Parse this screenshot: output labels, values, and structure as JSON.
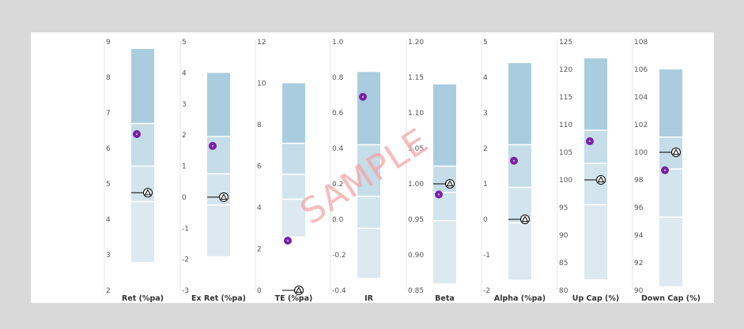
{
  "colors": {
    "page_bg": "#d9d9d9",
    "panel_bg": "#ffffff",
    "range_top": "#a9cddf",
    "range_upper_mid": "#c4dde9",
    "range_lower_mid": "#d2e5ee",
    "range_bottom": "#dde9f0",
    "fund_marker": "#7a1fa2",
    "benchmark_marker": "#000000",
    "axis_line": "#e6e6e6",
    "watermark": "#f4a6a6"
  },
  "watermark_text": "SAMPLE",
  "chart_data": [
    {
      "type": "floating-bar",
      "xlabel": "Ret (%pa)",
      "ylim": [
        2,
        9
      ],
      "ticks": [
        "2",
        "3",
        "4",
        "5",
        "6",
        "7",
        "8",
        "9"
      ],
      "tick_values": [
        2,
        3,
        4,
        5,
        6,
        7,
        8,
        9
      ],
      "range": [
        2.8,
        8.8
      ],
      "quartiles": [
        4.5,
        5.5,
        6.7
      ],
      "fund": 6.4,
      "benchmark": 4.75
    },
    {
      "type": "floating-bar",
      "xlabel": "Ex Ret (%pa)",
      "ylim": [
        -3,
        5
      ],
      "ticks": [
        "-3",
        "-2",
        "-1",
        "0",
        "1",
        "2",
        "3",
        "4",
        "5"
      ],
      "tick_values": [
        -3,
        -2,
        -1,
        0,
        1,
        2,
        3,
        4,
        5
      ],
      "range": [
        -1.9,
        4.0
      ],
      "quartiles": [
        -0.25,
        0.75,
        1.95
      ],
      "fund": 1.65,
      "benchmark": 0.0
    },
    {
      "type": "floating-bar",
      "xlabel": "TE (%pa)",
      "ylim": [
        0,
        12
      ],
      "ticks": [
        "0",
        "2",
        "4",
        "6",
        "8",
        "10",
        "12"
      ],
      "tick_values": [
        0,
        2,
        4,
        6,
        8,
        10,
        12
      ],
      "range": [
        2.6,
        10.0
      ],
      "quartiles": [
        4.4,
        5.6,
        7.1
      ],
      "fund": 2.4,
      "benchmark": 0.0
    },
    {
      "type": "floating-bar",
      "xlabel": "IR",
      "ylim": [
        -0.4,
        1.0
      ],
      "ticks": [
        "-0.4",
        "-0.2",
        "0.0",
        "0.2",
        "0.4",
        "0.6",
        "0.8",
        "1.0"
      ],
      "tick_values": [
        -0.4,
        -0.2,
        0.0,
        0.2,
        0.4,
        0.6,
        0.8,
        1.0
      ],
      "range": [
        -0.33,
        0.83
      ],
      "quartiles": [
        -0.05,
        0.13,
        0.42
      ],
      "fund": 0.69,
      "benchmark": null
    },
    {
      "type": "floating-bar",
      "xlabel": "Beta",
      "ylim": [
        0.85,
        1.2
      ],
      "ticks": [
        "0.85",
        "0.90",
        "0.95",
        "1.00",
        "1.05",
        "1.10",
        "1.15",
        "1.20"
      ],
      "tick_values": [
        0.85,
        0.9,
        0.95,
        1.0,
        1.05,
        1.1,
        1.15,
        1.2
      ],
      "range": [
        0.86,
        1.14
      ],
      "quartiles": [
        0.948,
        0.988,
        1.025
      ],
      "fund": 0.985,
      "benchmark": 1.0
    },
    {
      "type": "floating-bar",
      "xlabel": "Alpha (%pa)",
      "ylim": [
        -2,
        5
      ],
      "ticks": [
        "-2",
        "-1",
        "0",
        "1",
        "2",
        "3",
        "4",
        "5"
      ],
      "tick_values": [
        -2,
        -1,
        0,
        1,
        2,
        3,
        4,
        5
      ],
      "range": [
        -1.7,
        4.4
      ],
      "quartiles": [
        -0.1,
        0.9,
        2.1
      ],
      "fund": 1.65,
      "benchmark": 0.0
    },
    {
      "type": "floating-bar",
      "xlabel": "Up Cap (%)",
      "ylim": [
        80,
        125
      ],
      "ticks": [
        "80",
        "85",
        "90",
        "95",
        "100",
        "105",
        "110",
        "115",
        "120",
        "125"
      ],
      "tick_values": [
        80,
        85,
        90,
        95,
        100,
        105,
        110,
        115,
        120,
        125
      ],
      "range": [
        82,
        122
      ],
      "quartiles": [
        95.5,
        103,
        109
      ],
      "fund": 107,
      "benchmark": 100
    },
    {
      "type": "floating-bar",
      "xlabel": "Down Cap (%)",
      "ylim": [
        90,
        108
      ],
      "ticks": [
        "90",
        "92",
        "94",
        "96",
        "98",
        "100",
        "102",
        "104",
        "106",
        "108"
      ],
      "tick_values": [
        90,
        92,
        94,
        96,
        98,
        100,
        102,
        104,
        106,
        108
      ],
      "range": [
        90.3,
        106.0
      ],
      "quartiles": [
        95.3,
        98.8,
        101.1
      ],
      "fund": 98.7,
      "benchmark": 100
    }
  ]
}
